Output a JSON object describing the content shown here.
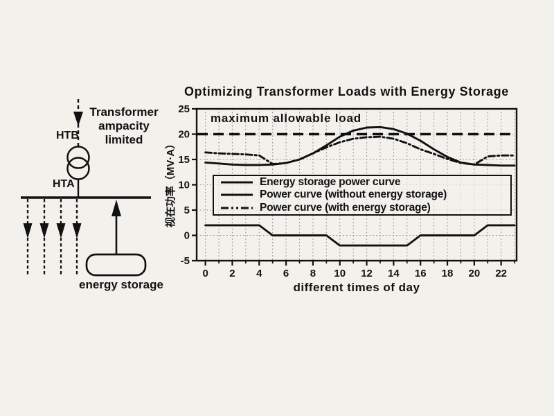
{
  "diagram": {
    "labels": {
      "htb": "HTB",
      "hta": "HTA",
      "transformer_note": "Transformer\nampacity\nlimited",
      "energy_storage": "energy storage"
    }
  },
  "chart_data": {
    "type": "line",
    "title": "Optimizing Transformer Loads with Energy Storage",
    "xlabel": "different times of day",
    "ylabel": "视在功率（MV·A）",
    "annotation": "maximum allowable load",
    "max_allowable_load": 20,
    "xlim": [
      -0.65,
      23.15
    ],
    "ylim": [
      -5,
      25
    ],
    "xticks": [
      0,
      2,
      4,
      6,
      8,
      10,
      12,
      14,
      16,
      18,
      20,
      22
    ],
    "xticks_minor": [
      1,
      3,
      5,
      7,
      9,
      11,
      13,
      15,
      17,
      19,
      21,
      23
    ],
    "yticks": [
      25,
      20,
      15,
      10,
      5,
      0,
      -5
    ],
    "ygrid_values": [
      0,
      5,
      10,
      15,
      20
    ],
    "grid": "dotted",
    "legend_position": "inside-lower",
    "x": [
      0,
      1,
      2,
      3,
      4,
      5,
      6,
      7,
      8,
      9,
      10,
      11,
      12,
      13,
      14,
      15,
      16,
      17,
      18,
      19,
      20,
      21,
      22,
      23
    ],
    "series": [
      {
        "name": "Energy storage power curve",
        "style": "solid",
        "color": "#111111",
        "values": [
          2,
          2,
          2,
          2,
          2,
          0,
          0,
          0,
          0,
          0,
          -2,
          -2,
          -2,
          -2,
          -2,
          -2,
          0,
          0,
          0,
          0,
          0,
          2,
          2,
          2
        ]
      },
      {
        "name": "Power curve (without energy storage)",
        "style": "solid",
        "color": "#111111",
        "values": [
          14.4,
          14.2,
          14.0,
          13.9,
          13.9,
          14.0,
          14.3,
          15.0,
          16.2,
          17.8,
          19.5,
          20.7,
          21.3,
          21.4,
          21.0,
          20.1,
          18.7,
          17.0,
          15.5,
          14.4,
          14.0,
          13.9,
          13.8,
          13.8
        ]
      },
      {
        "name": "Power curve (with energy storage)",
        "style": "dashdot",
        "color": "#111111",
        "values": [
          16.4,
          16.2,
          16.1,
          16.0,
          15.8,
          14.1,
          14.3,
          15.0,
          16.2,
          17.4,
          18.4,
          19.1,
          19.4,
          19.5,
          19.1,
          18.2,
          17.0,
          16.1,
          15.1,
          14.3,
          14.0,
          15.6,
          15.8,
          15.8
        ]
      }
    ]
  }
}
